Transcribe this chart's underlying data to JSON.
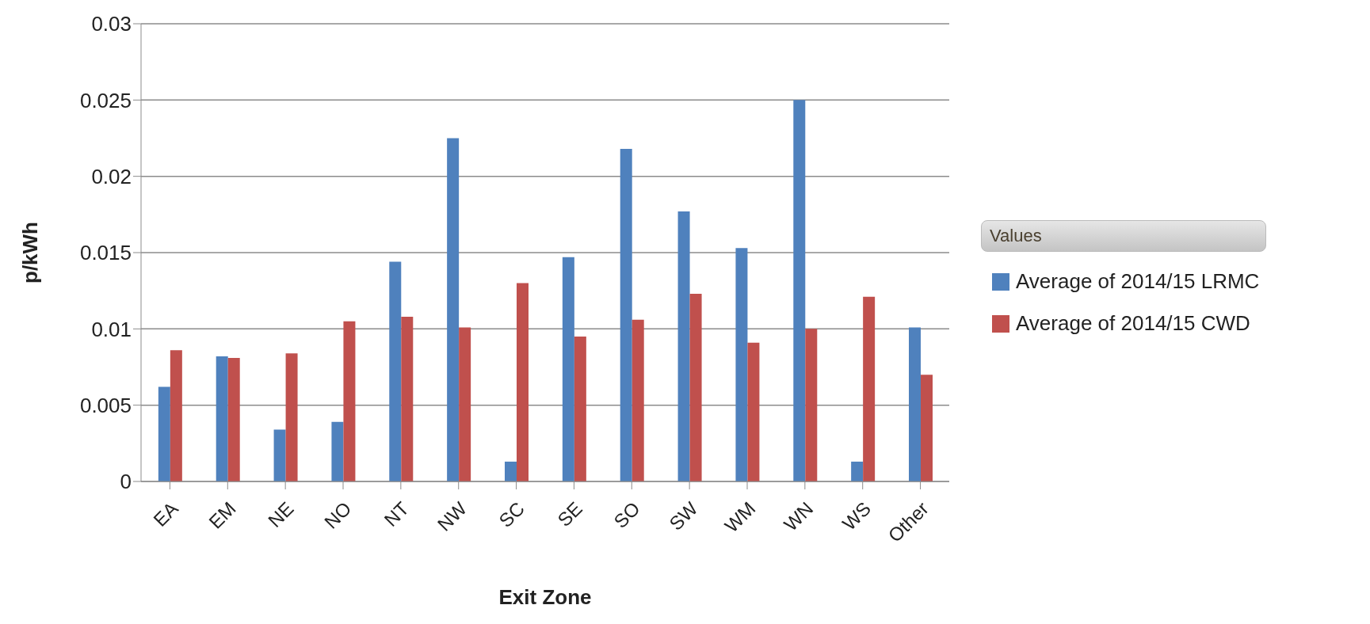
{
  "chart_data": {
    "type": "bar",
    "xlabel": "Exit Zone",
    "ylabel": "p/kWh",
    "legend_title": "Values",
    "categories": [
      "EA",
      "EM",
      "NE",
      "NO",
      "NT",
      "NW",
      "SC",
      "SE",
      "SO",
      "SW",
      "WM",
      "WN",
      "WS",
      "Other"
    ],
    "series": [
      {
        "name": "Average of 2014/15 LRMC",
        "color": "#4f81bd",
        "values": [
          0.0062,
          0.0082,
          0.0034,
          0.0039,
          0.0144,
          0.0225,
          0.0013,
          0.0147,
          0.0218,
          0.0177,
          0.0153,
          0.025,
          0.0013,
          0.0101
        ]
      },
      {
        "name": "Average of 2014/15 CWD",
        "color": "#c0504d",
        "values": [
          0.0086,
          0.0081,
          0.0084,
          0.0105,
          0.0108,
          0.0101,
          0.013,
          0.0095,
          0.0106,
          0.0123,
          0.0091,
          0.01,
          0.0121,
          0.007
        ]
      }
    ],
    "ylim": [
      0,
      0.03
    ],
    "yticks": [
      0,
      0.005,
      0.01,
      0.015,
      0.02,
      0.025,
      0.03
    ],
    "grid": "y",
    "legend": "right"
  }
}
